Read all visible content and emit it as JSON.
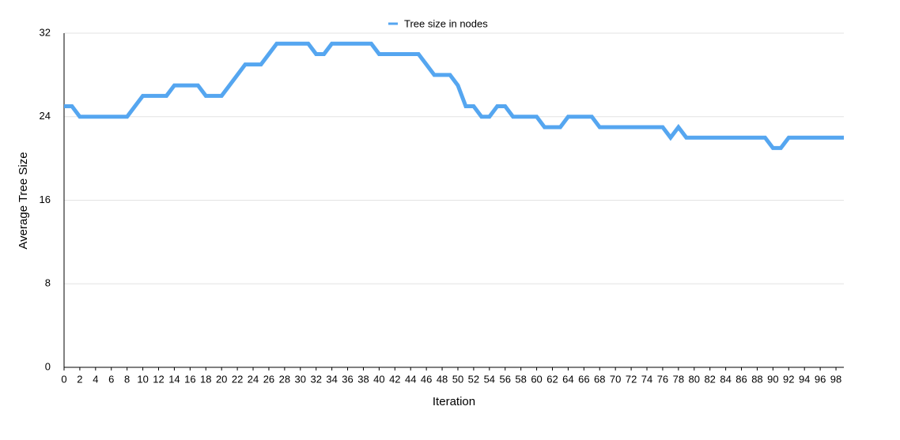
{
  "chart_data": {
    "type": "line",
    "x_label": "Iteration",
    "y_label": "Average Tree Size",
    "x": [
      0,
      1,
      2,
      3,
      4,
      5,
      6,
      7,
      8,
      9,
      10,
      11,
      12,
      13,
      14,
      15,
      16,
      17,
      18,
      19,
      20,
      21,
      22,
      23,
      24,
      25,
      26,
      27,
      28,
      29,
      30,
      31,
      32,
      33,
      34,
      35,
      36,
      37,
      38,
      39,
      40,
      41,
      42,
      43,
      44,
      45,
      46,
      47,
      48,
      49,
      50,
      51,
      52,
      53,
      54,
      55,
      56,
      57,
      58,
      59,
      60,
      61,
      62,
      63,
      64,
      65,
      66,
      67,
      68,
      69,
      70,
      71,
      72,
      73,
      74,
      75,
      76,
      77,
      78,
      79,
      80,
      81,
      82,
      83,
      84,
      85,
      86,
      87,
      88,
      89,
      90,
      91,
      92,
      93,
      94,
      95,
      96,
      97,
      98,
      99
    ],
    "series": [
      {
        "name": "Tree size in nodes",
        "color": "#55a6f0",
        "values": [
          25,
          25,
          24,
          24,
          24,
          24,
          24,
          24,
          24,
          25,
          26,
          26,
          26,
          26,
          27,
          27,
          27,
          27,
          26,
          26,
          26,
          27,
          28,
          29,
          29,
          29,
          30,
          31,
          31,
          31,
          31,
          31,
          30,
          30,
          31,
          31,
          31,
          31,
          31,
          31,
          30,
          30,
          30,
          30,
          30,
          30,
          29,
          28,
          28,
          28,
          27,
          25,
          25,
          24,
          24,
          25,
          25,
          24,
          24,
          24,
          24,
          23,
          23,
          23,
          24,
          24,
          24,
          24,
          23,
          23,
          23,
          23,
          23,
          23,
          23,
          23,
          23,
          22,
          23,
          22,
          22,
          22,
          22,
          22,
          22,
          22,
          22,
          22,
          22,
          22,
          21,
          21,
          22,
          22,
          22,
          22,
          22,
          22,
          22,
          22
        ]
      }
    ],
    "xlim": [
      0,
      99
    ],
    "ylim": [
      0,
      32
    ],
    "xticks": [
      0,
      2,
      4,
      6,
      8,
      10,
      12,
      14,
      16,
      18,
      20,
      22,
      24,
      26,
      28,
      30,
      32,
      34,
      36,
      38,
      40,
      42,
      44,
      46,
      48,
      50,
      52,
      54,
      56,
      58,
      60,
      62,
      64,
      66,
      68,
      70,
      72,
      74,
      76,
      78,
      80,
      82,
      84,
      86,
      88,
      90,
      92,
      94,
      96,
      98
    ],
    "yticks": [
      0,
      8,
      16,
      24,
      32
    ],
    "grid": true,
    "legend": "top"
  }
}
